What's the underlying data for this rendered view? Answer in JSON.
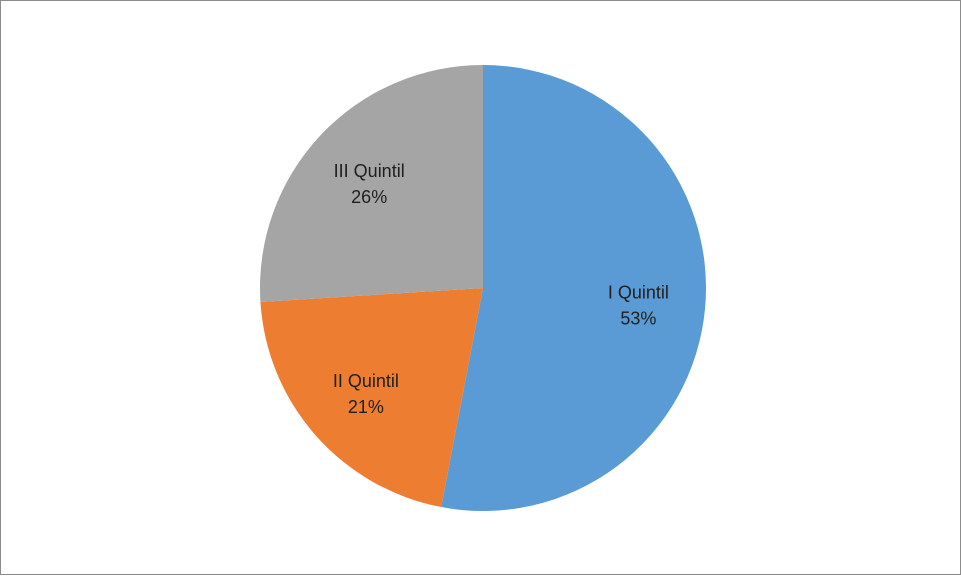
{
  "chart_data": {
    "type": "pie",
    "slices": [
      {
        "label": "I Quintil",
        "value": 53,
        "value_label": "53%",
        "color": "#5b9bd5"
      },
      {
        "label": "II Quintil",
        "value": 21,
        "value_label": "21%",
        "color": "#ed7d31"
      },
      {
        "label": "III Quintil",
        "value": 26,
        "value_label": "26%",
        "color": "#a5a5a5"
      }
    ],
    "start_angle_deg": 0,
    "direction": "clockwise",
    "legend": "none",
    "data_labels": "inside"
  }
}
